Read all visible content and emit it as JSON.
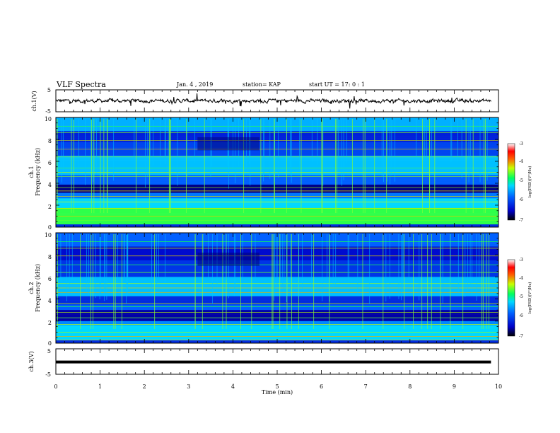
{
  "header": {
    "title": "VLF Spectra",
    "date": "Jan. 4 , 2019",
    "station": "station= KAP",
    "start": "start UT = 17: 0 : 1"
  },
  "chart_data": [
    {
      "type": "line",
      "ylabel": "ch.1(V)",
      "ylim": [
        -5,
        5
      ],
      "yticks": [
        "5",
        "-5"
      ],
      "xlim": [
        0,
        10
      ],
      "x_end": 9.83,
      "series": [
        {
          "values_description_free": true
        }
      ]
    },
    {
      "type": "heatmap",
      "ylabel": "ch.1\nFrequency (kHz)",
      "ylabel_line1": "ch.1",
      "ylabel_line2": "Frequency (kHz)",
      "ylim": [
        0,
        10
      ],
      "yticks": [
        "0",
        "2",
        "4",
        "6",
        "8",
        "10"
      ],
      "xlim": [
        0,
        10
      ],
      "colorbar": {
        "label": "log(PSD)(V²/Hz)",
        "ticks": [
          "-3",
          "-4",
          "-5",
          "-6",
          "-7"
        ],
        "range": [
          -7,
          -3
        ]
      }
    },
    {
      "type": "heatmap",
      "ylabel_line1": "ch.2",
      "ylabel_line2": "Frequency (kHz)",
      "ylim": [
        0,
        10
      ],
      "yticks": [
        "0",
        "2",
        "4",
        "6",
        "8",
        "10"
      ],
      "xlim": [
        0,
        10
      ],
      "colorbar": {
        "label": "log(PSD)(V²/Hz)",
        "ticks": [
          "-3",
          "-4",
          "-5",
          "-6",
          "-7"
        ],
        "range": [
          -7,
          -3
        ]
      }
    },
    {
      "type": "line",
      "ylabel": "ch.3(V)",
      "ylim": [
        -5,
        5
      ],
      "yticks": [
        "5",
        "-5"
      ],
      "xlim": [
        0,
        10
      ],
      "x_end": 9.83,
      "series": [
        {
          "constant_value": -0.2
        }
      ]
    }
  ],
  "xaxis": {
    "label": "Time (min)",
    "ticks": [
      "0",
      "1",
      "2",
      "3",
      "4",
      "5",
      "6",
      "7",
      "8",
      "9",
      "10"
    ]
  }
}
